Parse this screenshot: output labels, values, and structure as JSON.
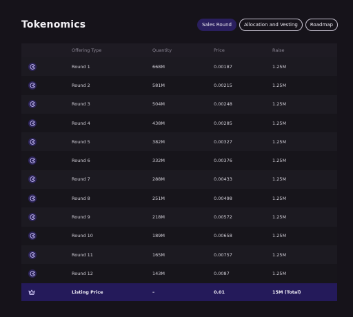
{
  "title": "Tokenomics",
  "tabs": [
    {
      "label": "Sales Round",
      "active": true
    },
    {
      "label": "Allocation and Vesting",
      "active": false
    },
    {
      "label": "Roadmap",
      "active": false
    }
  ],
  "table": {
    "headers": [
      "Offering Type",
      "Quantity",
      "Price",
      "Raise"
    ],
    "rows": [
      {
        "type": "Round 1",
        "quantity": "668M",
        "price": "0.00187",
        "raise": "1.25M"
      },
      {
        "type": "Round 2",
        "quantity": "581M",
        "price": "0.00215",
        "raise": "1.25M"
      },
      {
        "type": "Round 3",
        "quantity": "504M",
        "price": "0.00248",
        "raise": "1.25M"
      },
      {
        "type": "Round 4",
        "quantity": "438M",
        "price": "0.00285",
        "raise": "1.25M"
      },
      {
        "type": "Round 5",
        "quantity": "382M",
        "price": "0.00327",
        "raise": "1.25M"
      },
      {
        "type": "Round 6",
        "quantity": "332M",
        "price": "0.00376",
        "raise": "1.25M"
      },
      {
        "type": "Round 7",
        "quantity": "288M",
        "price": "0.00433",
        "raise": "1.25M"
      },
      {
        "type": "Round 8",
        "quantity": "251M",
        "price": "0.00498",
        "raise": "1.25M"
      },
      {
        "type": "Round 9",
        "quantity": "218M",
        "price": "0.00572",
        "raise": "1.25M"
      },
      {
        "type": "Round 10",
        "quantity": "189M",
        "price": "0.00658",
        "raise": "1.25M"
      },
      {
        "type": "Round 11",
        "quantity": "165M",
        "price": "0.00757",
        "raise": "1.25M"
      },
      {
        "type": "Round 12",
        "quantity": "143M",
        "price": "0.0087",
        "raise": "1.25M"
      }
    ],
    "footer": {
      "type": "Listing Price",
      "quantity": "–",
      "price": "0.01",
      "raise": "15M (Total)"
    }
  },
  "icons": {
    "round": "pacman-icon",
    "listing": "crown-icon"
  },
  "colors": {
    "background": "#16131a",
    "accent": "#2a1f5e",
    "footer": "#241a5a",
    "icon": "#b9a8ff"
  }
}
